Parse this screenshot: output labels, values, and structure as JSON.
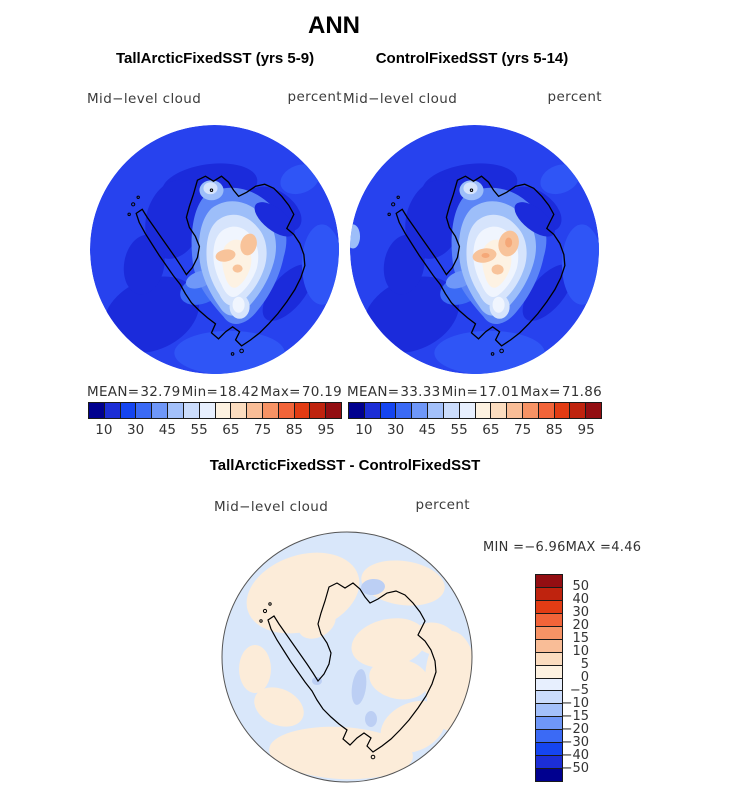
{
  "title": "ANN",
  "panels": {
    "model": {
      "title": "TallArcticFixedSST (yrs 5-9)",
      "field": "Mid−level cloud",
      "units": "percent",
      "mean_label": "MEAN=",
      "mean_value": "32.79",
      "min_label": "Min=",
      "min_value": "18.42",
      "max_label": "Max=",
      "max_value": "70.19"
    },
    "control": {
      "title": "ControlFixedSST (yrs 5-14)",
      "field": "Mid−level cloud",
      "units": "percent",
      "mean_label": "MEAN=",
      "mean_value": "33.33",
      "min_label": "Min=",
      "min_value": "17.01",
      "max_label": "Max=",
      "max_value": "71.86"
    },
    "diff": {
      "title": "TallArcticFixedSST - ControlFixedSST",
      "field": "Mid−level cloud",
      "units": "percent",
      "min_label": "MIN =",
      "min_value": "−6.96",
      "max_label": "MAX =",
      "max_value": "4.46"
    }
  },
  "colorbar": {
    "ticks": [
      "10",
      "30",
      "45",
      "55",
      "65",
      "75",
      "85",
      "95"
    ],
    "colors": [
      "#00008f",
      "#1c2ed6",
      "#1545f0",
      "#3b6af5",
      "#6f97f8",
      "#a3c0fa",
      "#cbdcfc",
      "#e7effe",
      "#fdf1e0",
      "#fbdcbf",
      "#f9bd97",
      "#f79365",
      "#f26439",
      "#e23c14",
      "#bf230e",
      "#930e12"
    ]
  },
  "diff_colorbar": {
    "labels": [
      "50",
      "40",
      "30",
      "20",
      "15",
      "10",
      "5",
      "0",
      "−5",
      "−10",
      "−15",
      "−20",
      "−30",
      "−40",
      "−50"
    ],
    "colors": [
      "#930e12",
      "#bf230e",
      "#e23c14",
      "#f26439",
      "#f79365",
      "#f9bd97",
      "#fbdcbf",
      "#fdf1e0",
      "#e7effe",
      "#cbdcfc",
      "#a3c0fa",
      "#6f97f8",
      "#3b6af5",
      "#1545f0",
      "#1c2ed6",
      "#00008f"
    ]
  },
  "map_colors": {
    "ocean_base": "#2742ee",
    "ocean_dark": "#1b2bdb",
    "ocean_light": "#2f55f6",
    "diff_base": "#d9e7fa",
    "diff_peach": "#fcecd9",
    "diff_blue": "#bccff4",
    "coastline": "#000000"
  },
  "chart_data": [
    {
      "type": "heatmap",
      "subtype": "filled-contour south polar stereographic map",
      "season": "ANN",
      "title": "TallArcticFixedSST (yrs 5-9)",
      "variable": "Mid-level cloud",
      "units": "percent",
      "stats": {
        "mean": 32.79,
        "min": 18.42,
        "max": 70.19
      },
      "contour_levels": [
        10,
        20,
        30,
        40,
        45,
        50,
        55,
        60,
        65,
        70,
        75,
        80,
        85,
        90,
        95
      ],
      "colorbar_tick_labels": [
        10,
        30,
        45,
        55,
        65,
        75,
        85,
        95
      ],
      "legend_position": "below"
    },
    {
      "type": "heatmap",
      "subtype": "filled-contour south polar stereographic map",
      "season": "ANN",
      "title": "ControlFixedSST (yrs 5-14)",
      "variable": "Mid-level cloud",
      "units": "percent",
      "stats": {
        "mean": 33.33,
        "min": 17.01,
        "max": 71.86
      },
      "contour_levels": [
        10,
        20,
        30,
        40,
        45,
        50,
        55,
        60,
        65,
        70,
        75,
        80,
        85,
        90,
        95
      ],
      "colorbar_tick_labels": [
        10,
        30,
        45,
        55,
        65,
        75,
        85,
        95
      ],
      "legend_position": "below"
    },
    {
      "type": "heatmap",
      "subtype": "difference map, south polar stereographic",
      "season": "ANN",
      "title": "TallArcticFixedSST - ControlFixedSST",
      "variable": "Mid-level cloud",
      "units": "percent",
      "stats": {
        "min": -6.96,
        "max": 4.46
      },
      "contour_levels": [
        -50,
        -40,
        -30,
        -20,
        -15,
        -10,
        -5,
        0,
        5,
        10,
        15,
        20,
        30,
        40,
        50
      ],
      "legend_position": "right"
    }
  ]
}
